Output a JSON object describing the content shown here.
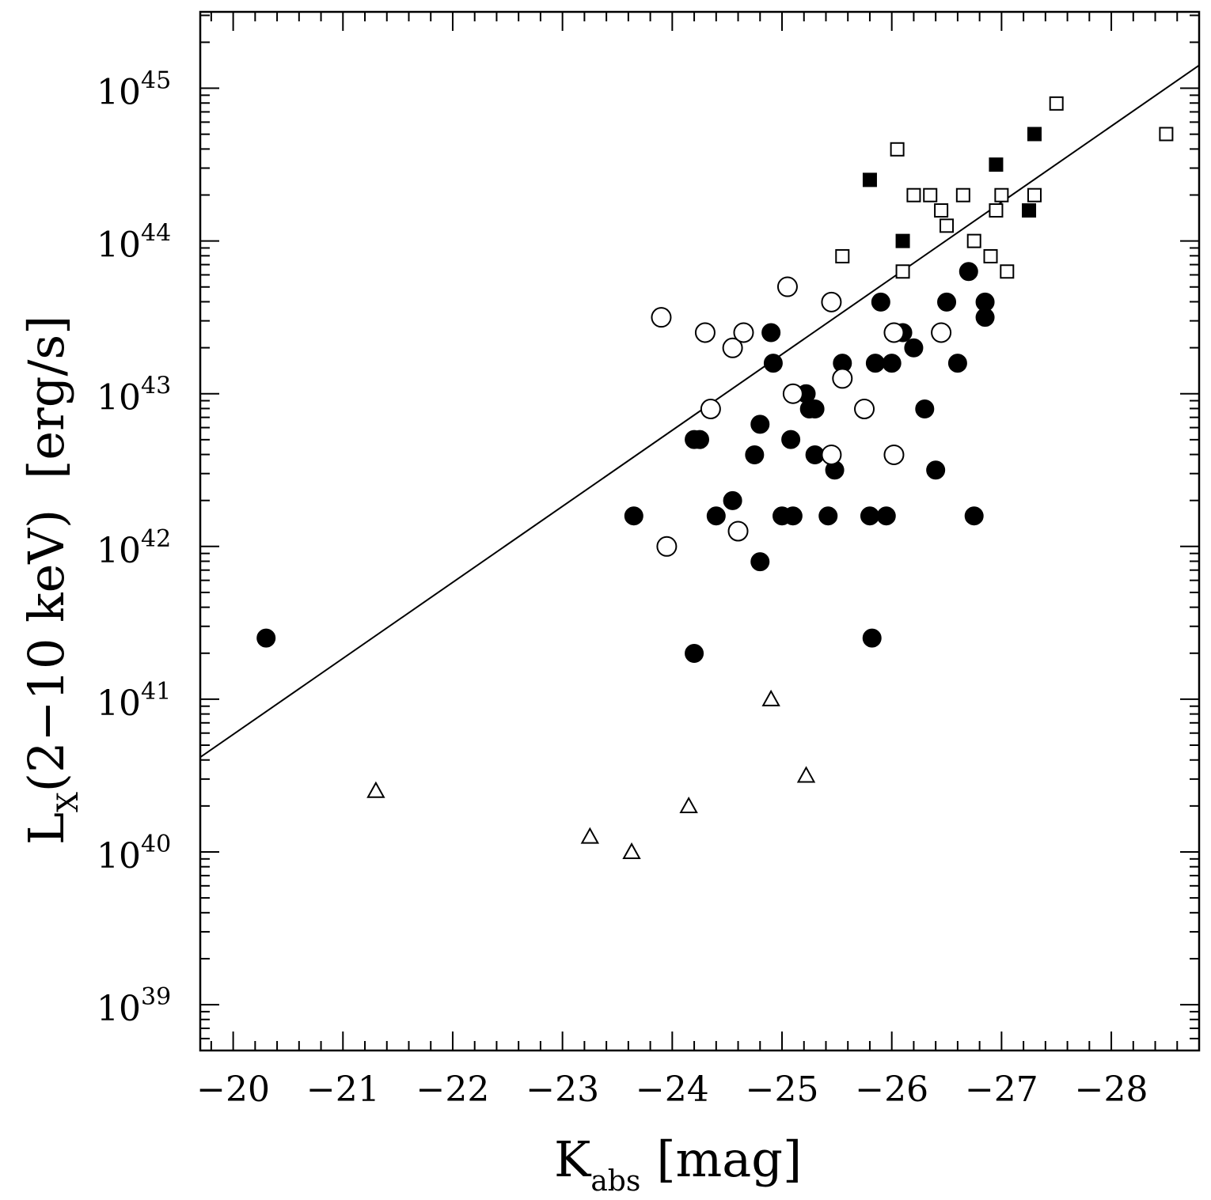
{
  "chart_data": {
    "type": "scatter",
    "xlabel": {
      "main": "K",
      "sub": "abs",
      "unit": "[mag]"
    },
    "ylabel": {
      "main": "L",
      "sub": "X",
      "rest": "(2−10 keV)",
      "unit": "[erg/s]"
    },
    "xlim": [
      -19.7,
      -28.8
    ],
    "ylim_log10": [
      38.7,
      45.5
    ],
    "x_ticks": [
      {
        "value": -20,
        "label": "−20"
      },
      {
        "value": -21,
        "label": "−21"
      },
      {
        "value": -22,
        "label": "−22"
      },
      {
        "value": -23,
        "label": "−23"
      },
      {
        "value": -24,
        "label": "−24"
      },
      {
        "value": -25,
        "label": "−25"
      },
      {
        "value": -26,
        "label": "−26"
      },
      {
        "value": -27,
        "label": "−27"
      },
      {
        "value": -28,
        "label": "−28"
      }
    ],
    "y_ticks": [
      {
        "value": 39,
        "base": "10",
        "exp": "39"
      },
      {
        "value": 40,
        "base": "10",
        "exp": "40"
      },
      {
        "value": 41,
        "base": "10",
        "exp": "41"
      },
      {
        "value": 42,
        "base": "10",
        "exp": "42"
      },
      {
        "value": 43,
        "base": "10",
        "exp": "43"
      },
      {
        "value": 44,
        "base": "10",
        "exp": "44"
      },
      {
        "value": 45,
        "base": "10",
        "exp": "45"
      }
    ],
    "fit_line": {
      "x": [
        -19.7,
        -28.8
      ],
      "log_y": [
        40.62,
        45.15
      ]
    },
    "series": [
      {
        "name": "filled-circles",
        "marker": "circle",
        "filled": true,
        "points": [
          [
            -20.3,
            41.4
          ],
          [
            -23.65,
            42.2
          ],
          [
            -24.2,
            41.3
          ],
          [
            -24.2,
            42.7
          ],
          [
            -24.25,
            42.7
          ],
          [
            -24.4,
            42.2
          ],
          [
            -24.55,
            42.3
          ],
          [
            -24.75,
            42.6
          ],
          [
            -24.8,
            42.8
          ],
          [
            -24.8,
            41.9
          ],
          [
            -24.9,
            43.4
          ],
          [
            -24.92,
            43.2
          ],
          [
            -25.0,
            42.2
          ],
          [
            -25.08,
            42.7
          ],
          [
            -25.1,
            42.2
          ],
          [
            -25.22,
            43.0
          ],
          [
            -25.25,
            42.9
          ],
          [
            -25.3,
            42.9
          ],
          [
            -25.3,
            42.6
          ],
          [
            -25.45,
            42.6
          ],
          [
            -25.48,
            42.5
          ],
          [
            -25.42,
            42.2
          ],
          [
            -25.55,
            43.2
          ],
          [
            -25.8,
            42.2
          ],
          [
            -25.82,
            41.4
          ],
          [
            -25.85,
            43.2
          ],
          [
            -25.9,
            43.6
          ],
          [
            -25.95,
            42.2
          ],
          [
            -26.0,
            43.2
          ],
          [
            -26.1,
            43.4
          ],
          [
            -26.2,
            43.3
          ],
          [
            -26.3,
            42.9
          ],
          [
            -26.4,
            42.5
          ],
          [
            -26.5,
            43.6
          ],
          [
            -26.6,
            43.2
          ],
          [
            -26.7,
            43.8
          ],
          [
            -26.75,
            42.2
          ],
          [
            -26.85,
            43.6
          ],
          [
            -26.85,
            43.5
          ]
        ]
      },
      {
        "name": "open-circles",
        "marker": "circle",
        "filled": false,
        "points": [
          [
            -23.9,
            43.5
          ],
          [
            -23.95,
            42.0
          ],
          [
            -24.3,
            43.4
          ],
          [
            -24.35,
            42.9
          ],
          [
            -24.55,
            43.3
          ],
          [
            -24.6,
            42.1
          ],
          [
            -24.65,
            43.4
          ],
          [
            -25.05,
            43.7
          ],
          [
            -25.1,
            43.0
          ],
          [
            -25.45,
            43.6
          ],
          [
            -25.45,
            42.6
          ],
          [
            -25.55,
            43.1
          ],
          [
            -25.75,
            42.9
          ],
          [
            -26.02,
            43.4
          ],
          [
            -26.02,
            42.6
          ],
          [
            -26.45,
            43.4
          ]
        ]
      },
      {
        "name": "open-squares",
        "marker": "square",
        "filled": false,
        "points": [
          [
            -25.55,
            43.9
          ],
          [
            -26.05,
            44.6
          ],
          [
            -26.1,
            43.8
          ],
          [
            -26.2,
            44.3
          ],
          [
            -26.35,
            44.3
          ],
          [
            -26.45,
            44.2
          ],
          [
            -26.5,
            44.1
          ],
          [
            -26.65,
            44.3
          ],
          [
            -26.75,
            44.0
          ],
          [
            -26.9,
            43.9
          ],
          [
            -26.95,
            44.2
          ],
          [
            -27.0,
            44.3
          ],
          [
            -27.05,
            43.8
          ],
          [
            -27.3,
            44.3
          ],
          [
            -27.5,
            44.9
          ],
          [
            -28.5,
            44.7
          ]
        ]
      },
      {
        "name": "filled-squares",
        "marker": "square",
        "filled": true,
        "points": [
          [
            -25.8,
            44.4
          ],
          [
            -26.1,
            44.0
          ],
          [
            -26.95,
            44.5
          ],
          [
            -27.25,
            44.2
          ],
          [
            -27.3,
            44.7
          ]
        ]
      },
      {
        "name": "open-triangles",
        "marker": "triangle",
        "filled": false,
        "points": [
          [
            -21.3,
            40.4
          ],
          [
            -23.25,
            40.1
          ],
          [
            -23.63,
            40.0
          ],
          [
            -24.15,
            40.3
          ],
          [
            -24.9,
            41.0
          ],
          [
            -25.22,
            40.5
          ]
        ]
      }
    ]
  }
}
